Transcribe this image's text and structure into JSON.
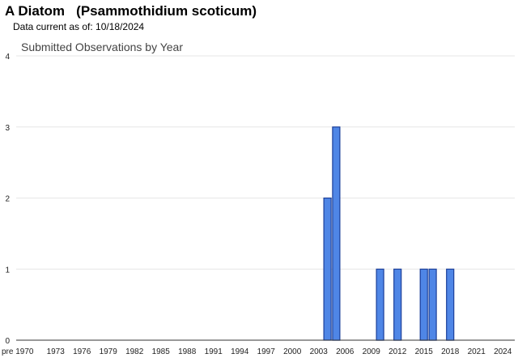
{
  "page": {
    "species_title": "A Diatom   (Psammothidium scoticum)",
    "data_current": "Data current as of: 10/18/2024"
  },
  "chart_data": {
    "type": "bar",
    "title": "Submitted Observations by Year",
    "xlabel": "",
    "ylabel": "",
    "ylim": [
      0,
      4
    ],
    "yticks": [
      0,
      1,
      2,
      3,
      4
    ],
    "grid": true,
    "x_tick_labels": [
      "pre 1970",
      "1973",
      "1976",
      "1979",
      "1982",
      "1985",
      "1988",
      "1991",
      "1994",
      "1997",
      "2000",
      "2003",
      "2006",
      "2009",
      "2012",
      "2015",
      "2018",
      "2021",
      "2024"
    ],
    "series": [
      {
        "x": [
          2004,
          2005,
          2010,
          2012,
          2015,
          2016,
          2018
        ],
        "values": [
          2,
          3,
          1,
          1,
          1,
          1,
          1
        ]
      }
    ],
    "bar_color": "#4f86e6",
    "bar_edge_color": "#1b3f9a"
  }
}
